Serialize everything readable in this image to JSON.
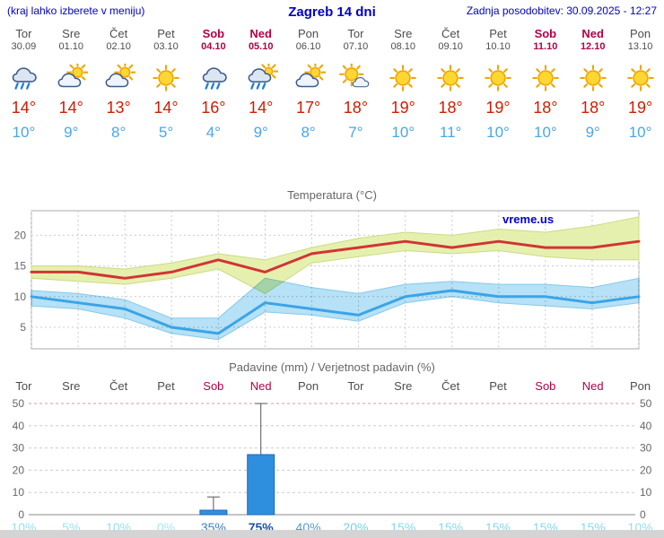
{
  "header": {
    "hint": "(kraj lahko izberete v meniju)",
    "title": "Zagreb 14 dni",
    "updated": "Zadnja posodobitev: 30.09.2025 - 12:27"
  },
  "colors": {
    "header_blue": "#0000cc",
    "weekend_red": "#b30047",
    "high_temp": "#d21c00",
    "low_temp": "#4ba6e8"
  },
  "days": [
    {
      "name": "Tor",
      "date": "30.09",
      "icon": "rain",
      "high": "14°",
      "low": "10°",
      "weekend": false
    },
    {
      "name": "Sre",
      "date": "01.10",
      "icon": "cloud-sun",
      "high": "14°",
      "low": "9°",
      "weekend": false
    },
    {
      "name": "Čet",
      "date": "02.10",
      "icon": "cloud-sun",
      "high": "13°",
      "low": "8°",
      "weekend": false
    },
    {
      "name": "Pet",
      "date": "03.10",
      "icon": "sun",
      "high": "14°",
      "low": "5°",
      "weekend": false
    },
    {
      "name": "Sob",
      "date": "04.10",
      "icon": "rain",
      "high": "16°",
      "low": "4°",
      "weekend": true
    },
    {
      "name": "Ned",
      "date": "05.10",
      "icon": "rain-sun",
      "high": "14°",
      "low": "9°",
      "weekend": true
    },
    {
      "name": "Pon",
      "date": "06.10",
      "icon": "cloud-sun",
      "high": "17°",
      "low": "8°",
      "weekend": false
    },
    {
      "name": "Tor",
      "date": "07.10",
      "icon": "sun-cloud",
      "high": "18°",
      "low": "7°",
      "weekend": false
    },
    {
      "name": "Sre",
      "date": "08.10",
      "icon": "sun",
      "high": "19°",
      "low": "10°",
      "weekend": false
    },
    {
      "name": "Čet",
      "date": "09.10",
      "icon": "sun",
      "high": "18°",
      "low": "11°",
      "weekend": false
    },
    {
      "name": "Pet",
      "date": "10.10",
      "icon": "sun",
      "high": "19°",
      "low": "10°",
      "weekend": false
    },
    {
      "name": "Sob",
      "date": "11.10",
      "icon": "sun",
      "high": "18°",
      "low": "10°",
      "weekend": true
    },
    {
      "name": "Ned",
      "date": "12.10",
      "icon": "sun",
      "high": "18°",
      "low": "9°",
      "weekend": true
    },
    {
      "name": "Pon",
      "date": "13.10",
      "icon": "sun",
      "high": "19°",
      "low": "10°",
      "weekend": false
    }
  ],
  "chart_data": [
    {
      "type": "area",
      "title": "Temperatura (°C)",
      "x_labels": [
        "Tor 30.09",
        "Sre 01.10",
        "Čet 02.10",
        "Pet 03.10",
        "Sob 04.10",
        "Ned 05.10",
        "Pon 06.10",
        "Tor 07.10",
        "Sre 08.10",
        "Čet 09.10",
        "Pet 10.10",
        "Sob 11.10",
        "Ned 12.10",
        "Pon 13.10"
      ],
      "ylim": [
        1.5,
        24
      ],
      "yticks": [
        5,
        10,
        15,
        20
      ],
      "grid": true,
      "legend": "none",
      "watermark": "vreme.us",
      "series": [
        {
          "name": "max-band-upper",
          "values": [
            15,
            15,
            14.5,
            15.5,
            17,
            16,
            18,
            19.5,
            20.5,
            20,
            21,
            20.5,
            21.5,
            23
          ]
        },
        {
          "name": "max-band-lower",
          "values": [
            13,
            12.5,
            12,
            13,
            14.5,
            10.5,
            15.5,
            16.5,
            17.5,
            17,
            17.5,
            16.5,
            16,
            16
          ]
        },
        {
          "name": "max-temperature",
          "values": [
            14,
            14,
            13,
            14,
            16,
            14,
            17,
            18,
            19,
            18,
            19,
            18,
            18,
            19
          ]
        },
        {
          "name": "min-band-upper",
          "values": [
            11,
            10.5,
            9.5,
            6.5,
            6.5,
            13,
            11.5,
            10.5,
            12,
            12.5,
            12,
            12,
            11.5,
            13
          ]
        },
        {
          "name": "min-band-lower",
          "values": [
            8.5,
            8,
            6.5,
            4,
            3,
            7.5,
            7,
            6,
            9,
            10,
            9,
            8.5,
            8,
            9
          ]
        },
        {
          "name": "min-temperature",
          "values": [
            10,
            9,
            8,
            5,
            4,
            9,
            8,
            7,
            10,
            11,
            10,
            10,
            9,
            10
          ]
        }
      ],
      "colors": {
        "max_band": "#e6f0ae",
        "max_band_edge": "#c9dc82",
        "max_line": "#d23434",
        "min_band": "#b6e1f6",
        "min_band_edge": "#85c9ec",
        "min_line": "#3ba4e6"
      }
    },
    {
      "type": "bar",
      "title": "Padavine (mm) / Verjetnost padavin (%)",
      "categories": [
        "Tor",
        "Sre",
        "Čet",
        "Pet",
        "Sob",
        "Ned",
        "Pon",
        "Tor",
        "Sre",
        "Čet",
        "Pet",
        "Sob",
        "Ned",
        "Pon"
      ],
      "values": [
        0,
        0,
        0,
        0,
        2,
        27,
        0,
        0,
        0,
        0,
        0,
        0,
        0,
        0
      ],
      "whiskers": [
        null,
        null,
        null,
        null,
        [
          0,
          8
        ],
        [
          1,
          50
        ],
        null,
        null,
        null,
        null,
        null,
        null,
        null,
        null
      ],
      "probabilities": [
        {
          "label": "10%",
          "color": "#93dff1"
        },
        {
          "label": "5%",
          "color": "#9ce2f3"
        },
        {
          "label": "10%",
          "color": "#93dff1"
        },
        {
          "label": "0%",
          "color": "#a5e6f5"
        },
        {
          "label": "35%",
          "color": "#4080c4"
        },
        {
          "label": "75%",
          "color": "#1c4fa6",
          "bold": true
        },
        {
          "label": "40%",
          "color": "#5599d5"
        },
        {
          "label": "20%",
          "color": "#78d0e9"
        },
        {
          "label": "15%",
          "color": "#85d8ee"
        },
        {
          "label": "15%",
          "color": "#85d8ee"
        },
        {
          "label": "15%",
          "color": "#85d8ee"
        },
        {
          "label": "15%",
          "color": "#85d8ee"
        },
        {
          "label": "15%",
          "color": "#85d8ee"
        },
        {
          "label": "10%",
          "color": "#93dff1"
        }
      ],
      "ylim": [
        0,
        50
      ],
      "yticks": [
        0,
        10,
        20,
        30,
        40,
        50
      ],
      "bar_color": "#2f8fdf",
      "bar_edge": "#1a6abc",
      "top_line_color": "#e89090"
    }
  ]
}
